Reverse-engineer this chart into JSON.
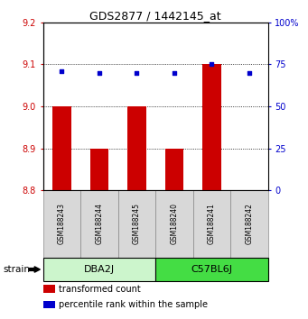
{
  "title": "GDS2877 / 1442145_at",
  "samples": [
    "GSM188243",
    "GSM188244",
    "GSM188245",
    "GSM188240",
    "GSM188241",
    "GSM188242"
  ],
  "groups": [
    {
      "label": "DBA2J",
      "indices": [
        0,
        1,
        2
      ],
      "color_light": "#ccf5cc",
      "color_dark": "#44cc44"
    },
    {
      "label": "C57BL6J",
      "indices": [
        3,
        4,
        5
      ],
      "color_light": "#44dd44",
      "color_dark": "#22aa22"
    }
  ],
  "red_values": [
    9.0,
    8.9,
    9.0,
    8.9,
    9.1,
    8.8
  ],
  "blue_values": [
    71,
    70,
    70,
    70,
    75,
    70
  ],
  "ylim_left": [
    8.8,
    9.2
  ],
  "ylim_right": [
    0,
    100
  ],
  "yticks_left": [
    8.8,
    8.9,
    9.0,
    9.1,
    9.2
  ],
  "yticks_right": [
    0,
    25,
    50,
    75,
    100
  ],
  "ytick_labels_right": [
    "0",
    "25",
    "50",
    "75",
    "100%"
  ],
  "bar_bottom": 8.8,
  "bar_color": "#cc0000",
  "dot_color": "#0000cc",
  "grid_ticks": [
    8.9,
    9.0,
    9.1
  ],
  "legend_items": [
    {
      "color": "#cc0000",
      "label": "transformed count"
    },
    {
      "color": "#0000cc",
      "label": "percentile rank within the sample"
    }
  ],
  "strain_label": "strain",
  "figsize": [
    3.41,
    3.54
  ],
  "dpi": 100
}
